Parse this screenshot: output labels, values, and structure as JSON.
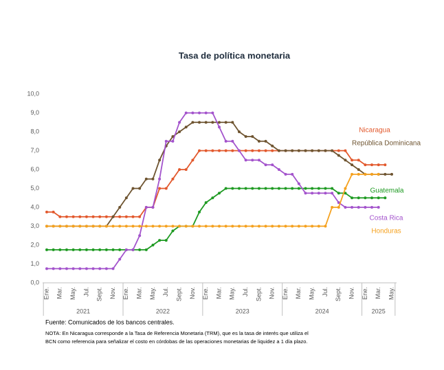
{
  "chart_data": {
    "type": "line",
    "title": "Tasa de política monetaria",
    "categories": [
      "Ene.",
      null,
      "Mar.",
      null,
      "May.",
      null,
      "Jul.",
      null,
      "Sept.",
      null,
      "Nov.",
      null,
      "Ene.",
      null,
      "Mar.",
      null,
      "May.",
      null,
      "Jul.",
      null,
      "Sept.",
      null,
      "Nov.",
      null,
      "Ene.",
      null,
      "Mar.",
      null,
      "May.",
      null,
      "Jul.",
      null,
      "Sept.",
      null,
      "Nov.",
      null,
      "Ene.",
      null,
      "Mar.",
      null,
      "May.",
      null,
      "Jul.",
      null,
      "Sept.",
      null,
      "Nov.",
      null,
      "Ene.",
      null,
      "Mar.",
      null,
      "May."
    ],
    "x_groups": [
      "2021",
      "2022",
      "2023",
      "2024",
      "2025"
    ],
    "ylim": [
      0,
      10
    ],
    "yticks": [
      {
        "value": 0,
        "label": "0,0"
      },
      {
        "value": 1,
        "label": "1,0"
      },
      {
        "value": 2,
        "label": "2,0"
      },
      {
        "value": 3,
        "label": "3,0"
      },
      {
        "value": 4,
        "label": "4,0"
      },
      {
        "value": 5,
        "label": "5,0"
      },
      {
        "value": 6,
        "label": "6,0"
      },
      {
        "value": 7,
        "label": "7,0"
      },
      {
        "value": 8,
        "label": "8,0"
      },
      {
        "value": 9,
        "label": "9,0"
      },
      {
        "value": 10,
        "label": "10,0"
      }
    ],
    "grid": false,
    "series": [
      {
        "name": "Nicaragua",
        "color": "#e2582c",
        "values": [
          3.75,
          3.75,
          3.5,
          3.5,
          3.5,
          3.5,
          3.5,
          3.5,
          3.5,
          3.5,
          3.5,
          3.5,
          3.5,
          3.5,
          3.5,
          4.0,
          4.0,
          5.0,
          5.0,
          5.5,
          6.0,
          6.0,
          6.5,
          7.0,
          7.0,
          7.0,
          7.0,
          7.0,
          7.0,
          7.0,
          7.0,
          7.0,
          7.0,
          7.0,
          7.0,
          7.0,
          7.0,
          7.0,
          7.0,
          7.0,
          7.0,
          7.0,
          7.0,
          7.0,
          7.0,
          7.0,
          6.5,
          6.5,
          6.25,
          6.25,
          6.25,
          6.25,
          null
        ]
      },
      {
        "name": "República Dominicana",
        "color": "#6e5430",
        "values": [
          3.0,
          3.0,
          3.0,
          3.0,
          3.0,
          3.0,
          3.0,
          3.0,
          3.0,
          3.0,
          3.5,
          4.0,
          4.5,
          5.0,
          5.0,
          5.5,
          5.5,
          6.5,
          7.25,
          7.75,
          8.0,
          8.25,
          8.5,
          8.5,
          8.5,
          8.5,
          8.5,
          8.5,
          8.5,
          8.0,
          7.75,
          7.75,
          7.5,
          7.5,
          7.25,
          7.0,
          7.0,
          7.0,
          7.0,
          7.0,
          7.0,
          7.0,
          7.0,
          7.0,
          6.75,
          6.5,
          6.25,
          6.0,
          5.75,
          5.75,
          5.75,
          5.75,
          5.75
        ]
      },
      {
        "name": "Guatemala",
        "color": "#1e9a22",
        "values": [
          1.75,
          1.75,
          1.75,
          1.75,
          1.75,
          1.75,
          1.75,
          1.75,
          1.75,
          1.75,
          1.75,
          1.75,
          1.75,
          1.75,
          1.75,
          1.75,
          2.0,
          2.25,
          2.25,
          2.75,
          3.0,
          3.0,
          3.0,
          3.75,
          4.25,
          4.5,
          4.75,
          5.0,
          5.0,
          5.0,
          5.0,
          5.0,
          5.0,
          5.0,
          5.0,
          5.0,
          5.0,
          5.0,
          5.0,
          5.0,
          5.0,
          5.0,
          5.0,
          5.0,
          4.75,
          4.75,
          4.5,
          4.5,
          4.5,
          4.5,
          4.5,
          4.5,
          null
        ]
      },
      {
        "name": "Costa Rica",
        "color": "#a353cc",
        "values": [
          0.75,
          0.75,
          0.75,
          0.75,
          0.75,
          0.75,
          0.75,
          0.75,
          0.75,
          0.75,
          0.75,
          1.25,
          1.75,
          1.75,
          2.5,
          4.0,
          4.0,
          5.5,
          7.5,
          7.5,
          8.5,
          9.0,
          9.0,
          9.0,
          9.0,
          9.0,
          8.25,
          7.5,
          7.5,
          7.0,
          6.5,
          6.5,
          6.5,
          6.25,
          6.25,
          6.0,
          5.75,
          5.75,
          5.25,
          4.75,
          4.75,
          4.75,
          4.75,
          4.75,
          4.25,
          4.0,
          4.0,
          4.0,
          4.0,
          4.0,
          4.0,
          null,
          null
        ]
      },
      {
        "name": "Honduras",
        "color": "#f5a11e",
        "values": [
          3.0,
          3.0,
          3.0,
          3.0,
          3.0,
          3.0,
          3.0,
          3.0,
          3.0,
          3.0,
          3.0,
          3.0,
          3.0,
          3.0,
          3.0,
          3.0,
          3.0,
          3.0,
          3.0,
          3.0,
          3.0,
          3.0,
          3.0,
          3.0,
          3.0,
          3.0,
          3.0,
          3.0,
          3.0,
          3.0,
          3.0,
          3.0,
          3.0,
          3.0,
          3.0,
          3.0,
          3.0,
          3.0,
          3.0,
          3.0,
          3.0,
          3.0,
          3.0,
          4.0,
          4.0,
          5.0,
          5.75,
          5.75,
          5.75,
          5.75,
          5.75,
          null,
          null
        ]
      }
    ],
    "source": "Fuente: Comunicados de los bancos centrales.",
    "note": [
      "NOTA: En Nicaragua corresponde a la Tasa de Referencia Monetaria (TRM), que es la tasa de interés que utiliza el",
      "BCN como referencia para señalizar el costo en córdobas de las operaciones monetarias de liquidez a 1 día plazo."
    ]
  }
}
